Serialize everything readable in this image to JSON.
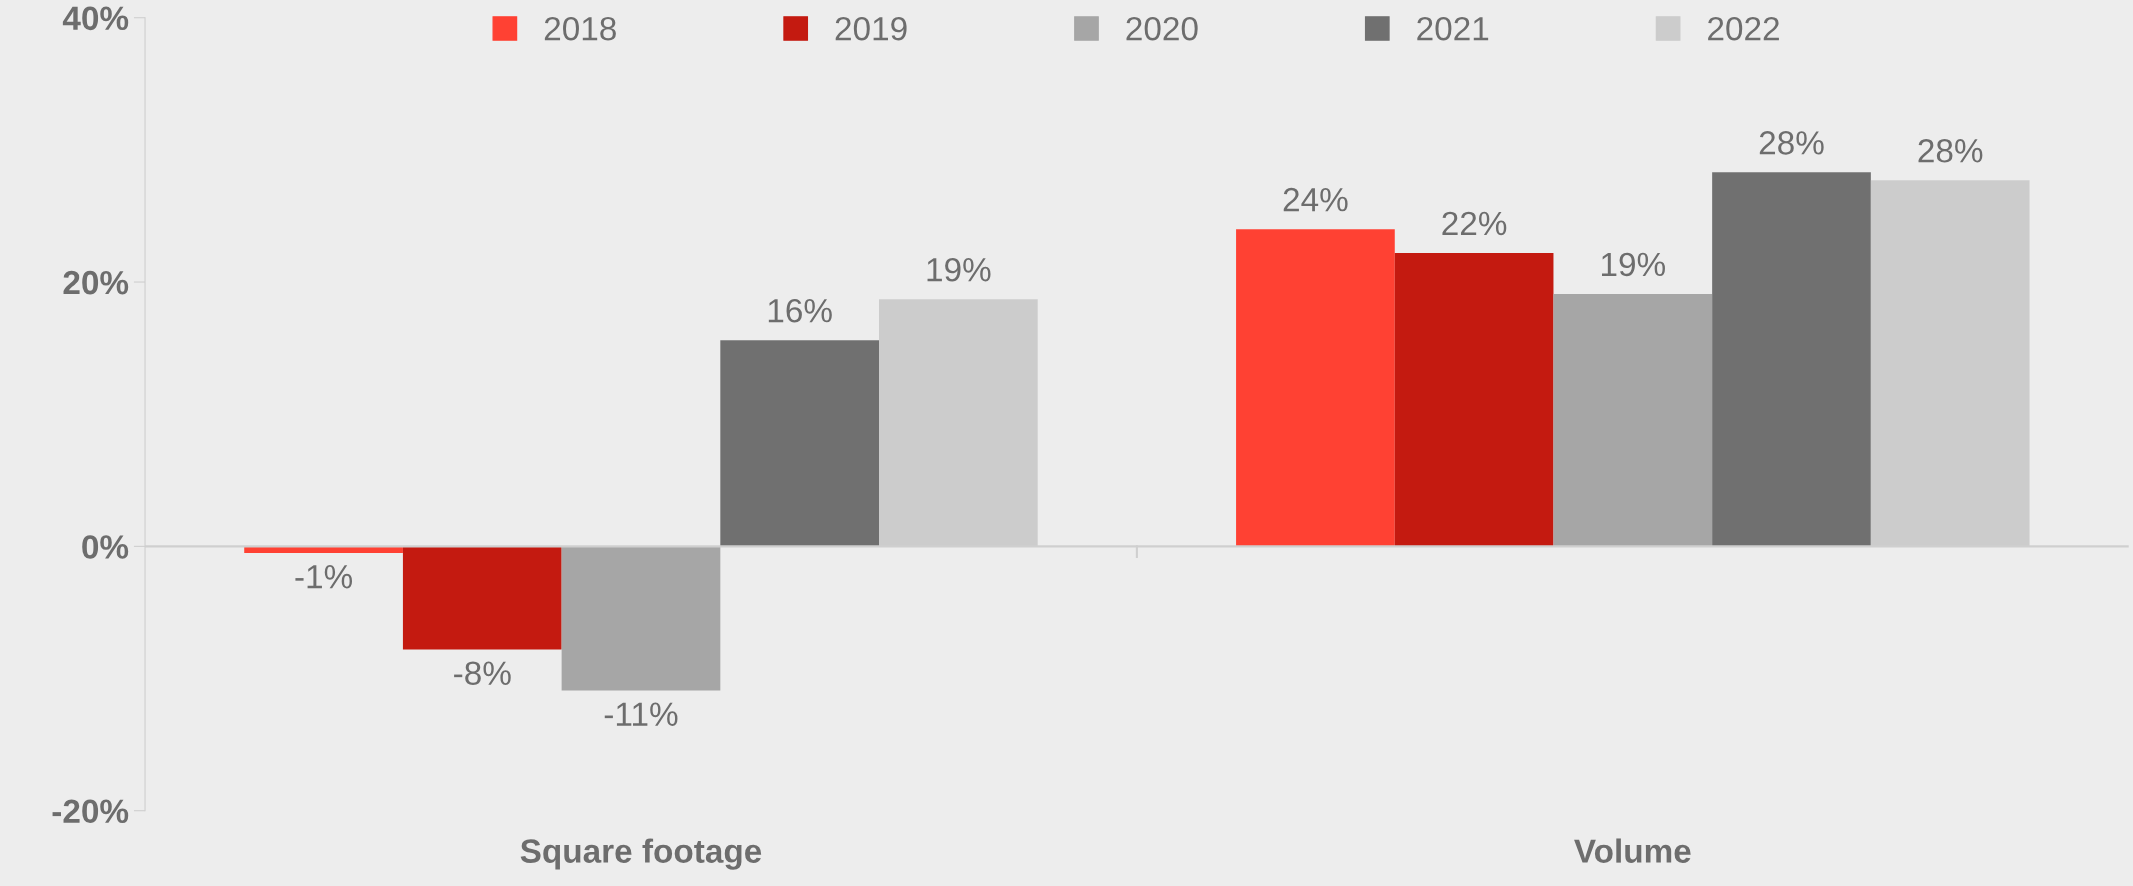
{
  "chart_data": {
    "type": "bar",
    "categories": [
      "Square footage",
      "Volume"
    ],
    "series": [
      {
        "name": "2018",
        "color": "#ff4133",
        "values": [
          -0.5,
          24.0
        ],
        "value_labels": [
          "-1%",
          "24%"
        ]
      },
      {
        "name": "2019",
        "color": "#c41a10",
        "values": [
          -7.8,
          22.2
        ],
        "value_labels": [
          "-8%",
          "22%"
        ]
      },
      {
        "name": "2020",
        "color": "#a6a6a6",
        "values": [
          -10.9,
          19.1
        ],
        "value_labels": [
          "-11%",
          "19%"
        ]
      },
      {
        "name": "2021",
        "color": "#707070",
        "values": [
          15.6,
          28.3
        ],
        "value_labels": [
          "16%",
          "28%"
        ]
      },
      {
        "name": "2022",
        "color": "#cccccc",
        "values": [
          18.7,
          27.7
        ],
        "value_labels": [
          "19%",
          "28%"
        ]
      }
    ],
    "ylim": [
      -20,
      40
    ],
    "yticks": [
      {
        "value": -20,
        "label": "-20%"
      },
      {
        "value": 0,
        "label": "0%"
      },
      {
        "value": 20,
        "label": "20%"
      },
      {
        "value": 40,
        "label": "40%"
      }
    ],
    "grid": false,
    "ref_lines": [
      {
        "axis": "y",
        "value": 0,
        "color": "#cfcfcf"
      }
    ],
    "legend": "top"
  }
}
